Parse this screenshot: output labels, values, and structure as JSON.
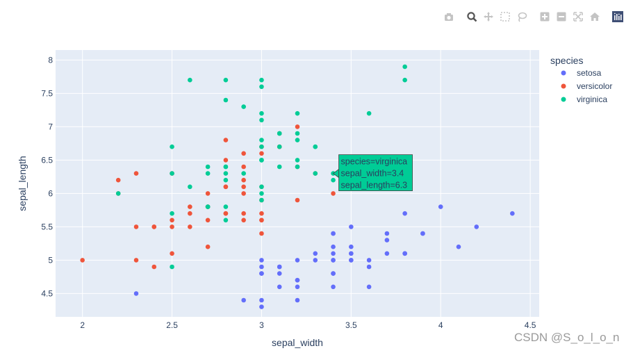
{
  "modebar": {
    "buttons": [
      {
        "name": "camera-icon"
      },
      {
        "name": "zoom-icon"
      },
      {
        "name": "pan-icon"
      },
      {
        "name": "box-select-icon"
      },
      {
        "name": "lasso-select-icon"
      },
      {
        "name": "zoom-in-icon"
      },
      {
        "name": "zoom-out-icon"
      },
      {
        "name": "autoscale-icon"
      },
      {
        "name": "reset-axes-icon"
      },
      {
        "name": "plotly-logo-icon"
      }
    ]
  },
  "chart_data": {
    "type": "scatter",
    "xlabel": "sepal_width",
    "ylabel": "sepal_length",
    "xlim": [
      1.85,
      4.55
    ],
    "ylim": [
      4.15,
      8.15
    ],
    "x_ticks": [
      2,
      2.5,
      3,
      3.5,
      4,
      4.5
    ],
    "y_ticks": [
      4.5,
      5,
      5.5,
      6,
      6.5,
      7,
      7.5,
      8
    ],
    "legend_title": "species",
    "legend_position": "right",
    "series": [
      {
        "name": "setosa",
        "color": "#636efa",
        "points": [
          [
            3.5,
            5.1
          ],
          [
            3.0,
            4.9
          ],
          [
            3.2,
            4.7
          ],
          [
            3.1,
            4.6
          ],
          [
            3.6,
            5.0
          ],
          [
            3.9,
            5.4
          ],
          [
            3.4,
            4.6
          ],
          [
            3.4,
            5.0
          ],
          [
            2.9,
            4.4
          ],
          [
            3.1,
            4.9
          ],
          [
            3.7,
            5.4
          ],
          [
            3.4,
            4.8
          ],
          [
            3.0,
            4.8
          ],
          [
            3.0,
            4.3
          ],
          [
            4.0,
            5.8
          ],
          [
            4.4,
            5.7
          ],
          [
            3.9,
            5.4
          ],
          [
            3.5,
            5.1
          ],
          [
            3.8,
            5.7
          ],
          [
            3.8,
            5.1
          ],
          [
            3.4,
            5.4
          ],
          [
            3.7,
            5.1
          ],
          [
            3.6,
            4.6
          ],
          [
            3.3,
            5.1
          ],
          [
            3.4,
            4.8
          ],
          [
            3.0,
            5.0
          ],
          [
            3.4,
            5.0
          ],
          [
            3.5,
            5.2
          ],
          [
            3.4,
            5.2
          ],
          [
            3.2,
            4.7
          ],
          [
            3.1,
            4.8
          ],
          [
            3.4,
            5.4
          ],
          [
            4.1,
            5.2
          ],
          [
            4.2,
            5.5
          ],
          [
            3.1,
            4.9
          ],
          [
            3.2,
            5.0
          ],
          [
            3.5,
            5.5
          ],
          [
            3.6,
            4.9
          ],
          [
            3.0,
            4.4
          ],
          [
            3.4,
            5.1
          ],
          [
            3.5,
            5.0
          ],
          [
            2.3,
            4.5
          ],
          [
            3.2,
            4.4
          ],
          [
            3.5,
            5.0
          ],
          [
            3.8,
            5.1
          ],
          [
            3.0,
            4.8
          ],
          [
            3.8,
            5.1
          ],
          [
            3.2,
            4.6
          ],
          [
            3.7,
            5.3
          ],
          [
            3.3,
            5.0
          ]
        ]
      },
      {
        "name": "versicolor",
        "color": "#ef553b",
        "points": [
          [
            3.2,
            7.0
          ],
          [
            3.2,
            6.4
          ],
          [
            3.1,
            6.9
          ],
          [
            2.3,
            5.5
          ],
          [
            2.8,
            6.5
          ],
          [
            2.8,
            5.7
          ],
          [
            3.3,
            6.3
          ],
          [
            2.4,
            4.9
          ],
          [
            2.9,
            6.6
          ],
          [
            2.7,
            5.2
          ],
          [
            2.0,
            5.0
          ],
          [
            3.0,
            5.9
          ],
          [
            2.2,
            6.0
          ],
          [
            2.9,
            6.1
          ],
          [
            2.9,
            5.6
          ],
          [
            3.1,
            6.7
          ],
          [
            3.0,
            5.6
          ],
          [
            2.7,
            5.8
          ],
          [
            2.2,
            6.2
          ],
          [
            2.5,
            5.6
          ],
          [
            3.2,
            5.9
          ],
          [
            2.8,
            6.1
          ],
          [
            2.5,
            6.3
          ],
          [
            2.8,
            6.1
          ],
          [
            2.9,
            6.4
          ],
          [
            3.0,
            6.6
          ],
          [
            2.8,
            6.8
          ],
          [
            3.0,
            6.7
          ],
          [
            2.9,
            6.0
          ],
          [
            2.6,
            5.7
          ],
          [
            2.4,
            5.5
          ],
          [
            2.4,
            5.5
          ],
          [
            2.7,
            5.8
          ],
          [
            2.7,
            6.0
          ],
          [
            3.0,
            5.4
          ],
          [
            3.4,
            6.0
          ],
          [
            3.1,
            6.7
          ],
          [
            2.3,
            6.3
          ],
          [
            3.0,
            5.6
          ],
          [
            2.5,
            5.5
          ],
          [
            2.6,
            5.5
          ],
          [
            3.0,
            6.1
          ],
          [
            2.6,
            5.8
          ],
          [
            2.3,
            5.0
          ],
          [
            2.7,
            5.6
          ],
          [
            3.0,
            5.7
          ],
          [
            2.9,
            5.7
          ],
          [
            2.9,
            6.2
          ],
          [
            2.5,
            5.1
          ],
          [
            2.8,
            5.7
          ]
        ]
      },
      {
        "name": "virginica",
        "color": "#00cc96",
        "points": [
          [
            3.3,
            6.3
          ],
          [
            2.7,
            5.8
          ],
          [
            3.0,
            7.1
          ],
          [
            2.9,
            6.3
          ],
          [
            3.0,
            6.5
          ],
          [
            3.0,
            7.6
          ],
          [
            2.5,
            4.9
          ],
          [
            2.9,
            7.3
          ],
          [
            2.5,
            6.7
          ],
          [
            3.6,
            7.2
          ],
          [
            3.2,
            6.5
          ],
          [
            2.7,
            6.4
          ],
          [
            3.0,
            6.8
          ],
          [
            2.5,
            5.7
          ],
          [
            2.8,
            5.8
          ],
          [
            3.2,
            6.4
          ],
          [
            3.0,
            6.5
          ],
          [
            3.8,
            7.7
          ],
          [
            2.6,
            7.7
          ],
          [
            2.2,
            6.0
          ],
          [
            3.2,
            6.9
          ],
          [
            2.8,
            5.6
          ],
          [
            2.8,
            7.7
          ],
          [
            2.7,
            6.3
          ],
          [
            3.3,
            6.7
          ],
          [
            3.2,
            7.2
          ],
          [
            2.8,
            6.2
          ],
          [
            3.0,
            6.1
          ],
          [
            2.8,
            6.4
          ],
          [
            3.0,
            7.2
          ],
          [
            2.8,
            7.4
          ],
          [
            3.8,
            7.9
          ],
          [
            2.8,
            6.4
          ],
          [
            2.8,
            6.3
          ],
          [
            2.6,
            6.1
          ],
          [
            3.0,
            7.7
          ],
          [
            3.4,
            6.3
          ],
          [
            3.1,
            6.4
          ],
          [
            3.0,
            6.0
          ],
          [
            3.1,
            6.9
          ],
          [
            3.1,
            6.7
          ],
          [
            3.1,
            6.9
          ],
          [
            2.7,
            5.8
          ],
          [
            3.2,
            6.8
          ],
          [
            3.3,
            6.7
          ],
          [
            3.0,
            6.7
          ],
          [
            2.5,
            6.3
          ],
          [
            3.0,
            6.5
          ],
          [
            3.4,
            6.2
          ],
          [
            3.0,
            5.9
          ]
        ]
      }
    ],
    "hover": {
      "series_index": 2,
      "point": [
        3.4,
        6.3
      ],
      "lines": [
        "species=virginica",
        "sepal_width=3.4",
        "sepal_length=6.3"
      ]
    }
  },
  "watermark": "CSDN @S_o_l_o_n"
}
